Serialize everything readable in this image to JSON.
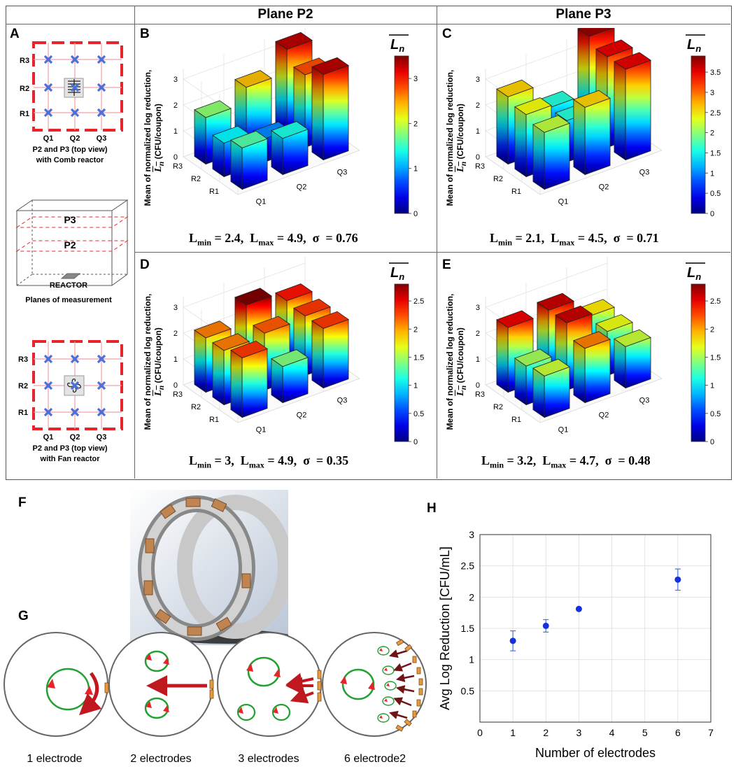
{
  "header": {
    "col_p2": "Plane P2",
    "col_p3": "Plane P3"
  },
  "panel_letters": {
    "a": "A",
    "b": "B",
    "c": "C",
    "d": "D",
    "e": "E",
    "f": "F",
    "g": "G",
    "h": "H"
  },
  "panel_a": {
    "rows": [
      "R3",
      "R2",
      "R1"
    ],
    "cols": [
      "Q1",
      "Q2",
      "Q3"
    ],
    "comb_caption_1": "P2 and P3 (top view)",
    "comb_caption_2": "with Comb reactor",
    "plane_top": "P3",
    "plane_bottom": "P2",
    "reactor": "REACTOR",
    "planes_caption": "Planes of measurement",
    "fan_caption_1": "P2 and P3 (top view)",
    "fan_caption_2": "with Fan reactor"
  },
  "bar3d_common": {
    "ylabel_line1": "Mean of normalized log reduction,",
    "ylabel_line2": "(CFU/coupon)",
    "ylabel_sym": "L",
    "ylabel_sub": "n",
    "colorbar_sym": "L",
    "colorbar_sub": "n",
    "rows": [
      "R3",
      "R2",
      "R1"
    ],
    "cols": [
      "Q1",
      "Q2",
      "Q3"
    ]
  },
  "chart_data": [
    {
      "id": "B",
      "type": "bar3d",
      "plane": "Plane P2",
      "reactor": "Comb",
      "x_categories": [
        "Q1",
        "Q2",
        "Q3"
      ],
      "y_categories": [
        "R1",
        "R2",
        "R3"
      ],
      "values": {
        "R3": [
          1.8,
          2.4,
          3.3
        ],
        "R2": [
          1.3,
          0.9,
          2.8
        ],
        "R1": [
          1.6,
          1.4,
          3.3
        ]
      },
      "zlim": [
        0,
        3
      ],
      "zticks": [
        "0",
        "1",
        "2",
        "3"
      ],
      "colorbar": {
        "min": 0,
        "max": 3.5,
        "ticks": [
          "0",
          "1",
          "2",
          "3"
        ]
      },
      "stats": {
        "min_label": "L",
        "min_sub": "min",
        "min_val": "= 2.4,",
        "max_label": "L",
        "max_sub": "max",
        "max_val": "= 4.9,",
        "sigma": "σ",
        "sigma_val": "= 0.76"
      }
    },
    {
      "id": "C",
      "type": "bar3d",
      "plane": "Plane P3",
      "reactor": "Comb",
      "x_categories": [
        "Q1",
        "Q2",
        "Q3"
      ],
      "y_categories": [
        "R1",
        "R2",
        "R3"
      ],
      "values": {
        "R3": [
          2.6,
          1.6,
          3.8
        ],
        "R2": [
          2.4,
          1.6,
          3.5
        ],
        "R1": [
          2.2,
          2.6,
          3.5
        ]
      },
      "zlim": [
        0,
        3
      ],
      "zticks": [
        "0",
        "1",
        "2",
        "3"
      ],
      "colorbar": {
        "min": 0,
        "max": 3.9,
        "ticks": [
          "0",
          "0.5",
          "1",
          "1.5",
          "2",
          "2.5",
          "3",
          "3.5"
        ]
      },
      "stats": {
        "min_label": "L",
        "min_sub": "min",
        "min_val": "= 2.1,",
        "max_label": "L",
        "max_sub": "max",
        "max_val": "= 4.5,",
        "sigma": "σ",
        "sigma_val": "= 0.71"
      }
    },
    {
      "id": "D",
      "type": "bar3d",
      "plane": "Plane P2",
      "reactor": "Fan",
      "x_categories": [
        "Q1",
        "Q2",
        "Q3"
      ],
      "y_categories": [
        "R1",
        "R2",
        "R3"
      ],
      "values": {
        "R3": [
          2.1,
          2.8,
          2.4
        ],
        "R2": [
          2.1,
          2.2,
          2.3
        ],
        "R1": [
          2.3,
          1.4,
          2.3
        ]
      },
      "zlim": [
        0,
        3
      ],
      "zticks": [
        "0",
        "1",
        "2",
        "3"
      ],
      "colorbar": {
        "min": 0,
        "max": 2.8,
        "ticks": [
          "0",
          "0.5",
          "1",
          "1.5",
          "2",
          "2.5"
        ]
      },
      "stats": {
        "min_label": "L",
        "min_sub": "min",
        "min_val": "= 3,",
        "max_label": "L",
        "max_sub": "max",
        "max_val": "= 4.9,",
        "sigma": "σ",
        "sigma_val": "= 0.35"
      }
    },
    {
      "id": "E",
      "type": "bar3d",
      "plane": "Plane P3",
      "reactor": "Fan",
      "x_categories": [
        "Q1",
        "Q2",
        "Q3"
      ],
      "y_categories": [
        "R1",
        "R2",
        "R3"
      ],
      "values": {
        "R3": [
          2.5,
          2.6,
          1.8
        ],
        "R2": [
          1.5,
          2.6,
          1.7
        ],
        "R1": [
          1.6,
          2.1,
          1.6
        ]
      },
      "zlim": [
        0,
        3
      ],
      "zticks": [
        "0",
        "1",
        "2",
        "3"
      ],
      "colorbar": {
        "min": 0,
        "max": 2.8,
        "ticks": [
          "0",
          "0.5",
          "1",
          "1.5",
          "2",
          "2.5"
        ]
      },
      "stats": {
        "min_label": "L",
        "min_sub": "min",
        "min_val": "= 3.2,",
        "max_label": "L",
        "max_sub": "max",
        "max_val": "= 4.7,",
        "sigma": "σ",
        "sigma_val": "= 0.48"
      }
    },
    {
      "id": "H",
      "type": "scatter",
      "x": [
        1,
        2,
        3,
        6
      ],
      "y": [
        1.3,
        1.54,
        1.81,
        2.28
      ],
      "yerr": [
        0.16,
        0.1,
        0.0,
        0.17
      ],
      "xlabel": "Number of electrodes",
      "ylabel": "Avg Log Reduction [CFU/mL]",
      "xlim": [
        0,
        7
      ],
      "ylim": [
        0,
        3
      ],
      "xticks": [
        "0",
        "1",
        "2",
        "3",
        "4",
        "5",
        "6",
        "7"
      ],
      "yticks": [
        "0.5",
        "1",
        "1.5",
        "2",
        "2.5",
        "3"
      ],
      "grid": true
    }
  ],
  "panel_g": {
    "labels": [
      "1 electrode",
      "2 electrodes",
      "3 electrodes",
      "6 electrode2"
    ]
  }
}
